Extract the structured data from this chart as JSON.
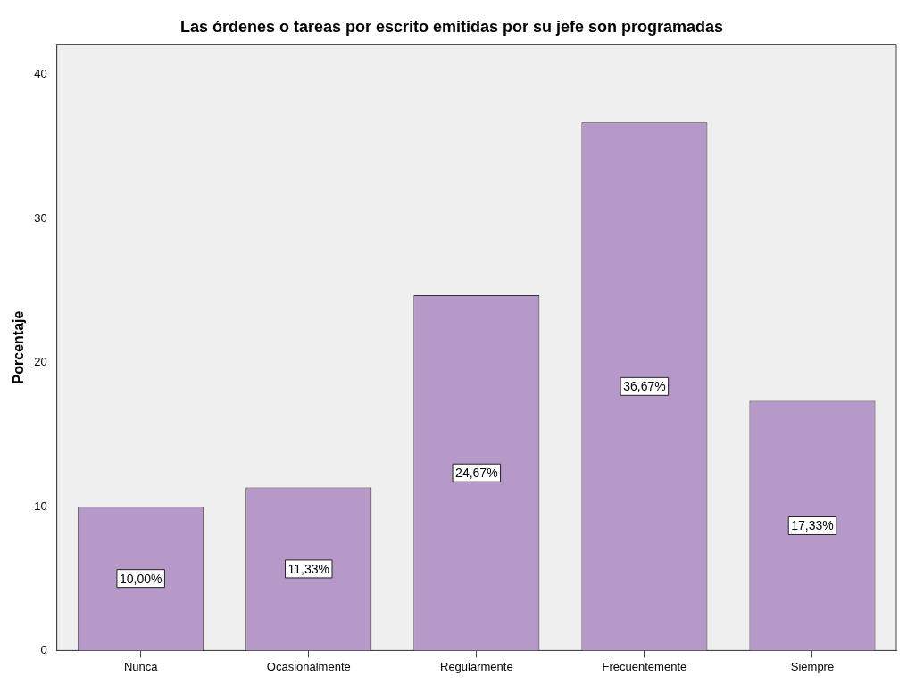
{
  "chart_data": {
    "type": "bar",
    "title": "Las órdenes o tareas por escrito emitidas por su jefe son programadas",
    "ylabel": "Porcentaje",
    "categories": [
      "Nunca",
      "Ocasionalmente",
      "Regularmente",
      "Frecuentemente",
      "Siempre"
    ],
    "values": [
      10.0,
      11.33,
      24.67,
      36.67,
      17.33
    ],
    "value_labels": [
      "10,00%",
      "11,33%",
      "24,67%",
      "36,67%",
      "17,33%"
    ],
    "color": "#b799c9",
    "ylim": [
      0,
      42.1
    ],
    "yticks": [
      0,
      10,
      20,
      30,
      40
    ],
    "grid": false,
    "legend": false
  }
}
